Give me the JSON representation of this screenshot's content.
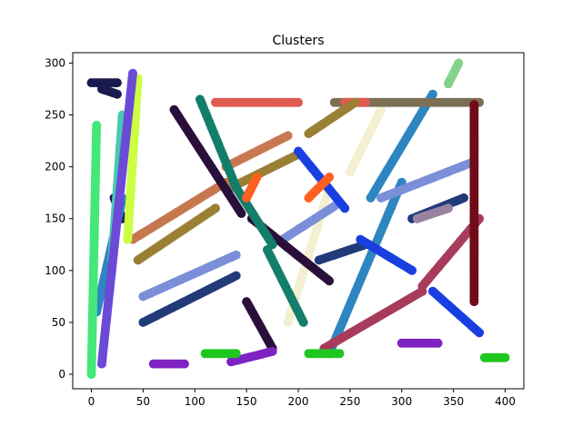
{
  "chart_data": {
    "type": "scatter",
    "title": "Clusters",
    "xlabel": "",
    "ylabel": "",
    "xlim": [
      -18,
      418
    ],
    "ylim": [
      -14,
      310
    ],
    "x_ticks": [
      0,
      50,
      100,
      150,
      200,
      250,
      300,
      350,
      400
    ],
    "y_ticks": [
      0,
      50,
      100,
      150,
      200,
      250,
      300
    ],
    "grid": false,
    "legend": "none",
    "series": [
      {
        "color": "#1b1a4f",
        "segments": [
          [
            0,
            281,
            25,
            281
          ],
          [
            10,
            275,
            25,
            270
          ],
          [
            22,
            170,
            30,
            150
          ]
        ]
      },
      {
        "color": "#2e86c1",
        "segments": [
          [
            230,
            20,
            300,
            185
          ],
          [
            270,
            170,
            330,
            270
          ],
          [
            5,
            60,
            30,
            170
          ]
        ]
      },
      {
        "color": "#f2f0d0",
        "segments": [
          [
            190,
            50,
            230,
            180
          ],
          [
            250,
            195,
            280,
            255
          ]
        ]
      },
      {
        "color": "#7b6f55",
        "segments": [
          [
            235,
            262,
            375,
            262
          ]
        ]
      },
      {
        "color": "#e05a50",
        "segments": [
          [
            120,
            262,
            200,
            262
          ],
          [
            245,
            262,
            265,
            262
          ]
        ]
      },
      {
        "color": "#c77850",
        "segments": [
          [
            40,
            130,
            130,
            185
          ],
          [
            130,
            200,
            190,
            230
          ]
        ]
      },
      {
        "color": "#9a7f35",
        "segments": [
          [
            45,
            110,
            120,
            160
          ],
          [
            135,
            180,
            200,
            212
          ],
          [
            210,
            232,
            255,
            262
          ]
        ]
      },
      {
        "color": "#7a8fd8",
        "segments": [
          [
            50,
            75,
            140,
            115
          ],
          [
            185,
            130,
            235,
            162
          ],
          [
            280,
            170,
            370,
            205
          ]
        ]
      },
      {
        "color": "#213a7a",
        "segments": [
          [
            50,
            50,
            140,
            95
          ],
          [
            220,
            110,
            265,
            125
          ],
          [
            310,
            150,
            360,
            170
          ]
        ]
      },
      {
        "color": "#2a0f3a",
        "segments": [
          [
            80,
            255,
            145,
            155
          ],
          [
            155,
            150,
            230,
            90
          ],
          [
            150,
            70,
            175,
            25
          ]
        ]
      },
      {
        "color": "#137e6a",
        "segments": [
          [
            105,
            265,
            140,
            180
          ],
          [
            140,
            180,
            175,
            125
          ],
          [
            170,
            120,
            205,
            50
          ]
        ]
      },
      {
        "color": "#a83b5c",
        "segments": [
          [
            225,
            25,
            320,
            80
          ],
          [
            320,
            85,
            375,
            150
          ]
        ]
      },
      {
        "color": "#1a3fe0",
        "segments": [
          [
            200,
            215,
            245,
            160
          ],
          [
            260,
            130,
            310,
            100
          ],
          [
            330,
            80,
            375,
            40
          ]
        ]
      },
      {
        "color": "#7e22c2",
        "segments": [
          [
            60,
            10,
            90,
            10
          ],
          [
            135,
            12,
            175,
            22
          ],
          [
            300,
            30,
            335,
            30
          ]
        ]
      },
      {
        "color": "#1ec71e",
        "segments": [
          [
            110,
            20,
            140,
            20
          ],
          [
            210,
            20,
            240,
            20
          ],
          [
            380,
            16,
            400,
            16
          ]
        ]
      },
      {
        "color": "#6f0c18",
        "segments": [
          [
            370,
            70,
            370,
            260
          ]
        ]
      },
      {
        "color": "#82d48a",
        "segments": [
          [
            345,
            280,
            355,
            300
          ]
        ]
      },
      {
        "color": "#ccff44",
        "segments": [
          [
            35,
            130,
            45,
            285
          ]
        ]
      },
      {
        "color": "#44e878",
        "segments": [
          [
            0,
            0,
            5,
            240
          ]
        ]
      },
      {
        "color": "#48c9b0",
        "segments": [
          [
            20,
            110,
            30,
            250
          ]
        ]
      },
      {
        "color": "#6a4ad6",
        "segments": [
          [
            10,
            10,
            40,
            290
          ]
        ]
      },
      {
        "color": "#ff5f1f",
        "segments": [
          [
            150,
            170,
            160,
            190
          ],
          [
            210,
            170,
            230,
            190
          ]
        ]
      },
      {
        "color": "#9b82a0",
        "segments": [
          [
            315,
            150,
            345,
            160
          ]
        ]
      }
    ]
  }
}
